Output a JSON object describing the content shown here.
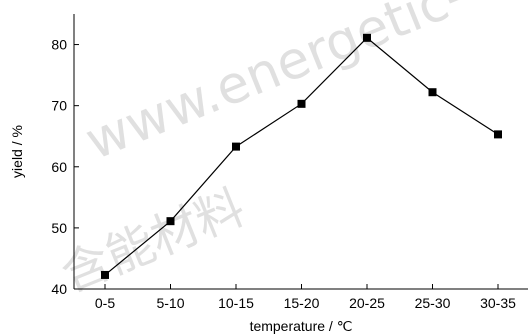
{
  "chart_data": {
    "type": "line",
    "categories": [
      "0-5",
      "5-10",
      "10-15",
      "15-20",
      "20-25",
      "25-30",
      "30-35"
    ],
    "series": [
      {
        "values": [
          42.3,
          51.1,
          63.3,
          70.3,
          81.1,
          72.2,
          65.3
        ]
      }
    ],
    "xlabel": "temperature / ℃",
    "ylabel": "yield / %",
    "ylim": [
      40,
      85
    ],
    "yticks": [
      40,
      50,
      60,
      70,
      80
    ],
    "grid": false,
    "marker": "square",
    "line_color": "#000000"
  },
  "watermark": {
    "url_text": "www.energetic-",
    "cn_text": "含能材料"
  }
}
